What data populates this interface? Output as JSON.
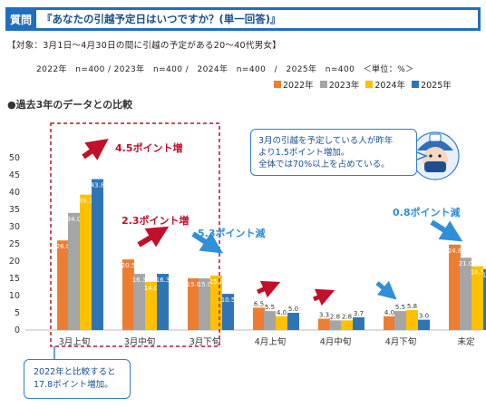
{
  "header": {
    "label": "質問",
    "question": "『あなたの引越予定日はいつですか？(単一回答)』"
  },
  "target": "【対象：3月1日～4月30日の間に引越の予定がある20～40代男女】",
  "sample": "2022年　n=400 / 2023年　n=400 /　2024年　n=400　/　2025年　n=400　＜単位：%＞",
  "subtitle": "●過去3年のデータとの比較",
  "note": {
    "line1": "3月の引越を予定している人が昨年",
    "line2": "より1.5ポイント増加。",
    "line3": "全体では70%以上を占めている。"
  },
  "bottom_note": {
    "line1": "2022年と比較すると",
    "line2": "17.8ポイント増加。"
  },
  "annotations": {
    "a1": "4.5ポイント増",
    "a2": "2.3ポイント増",
    "a3": "5.3ポイント減",
    "a4": "0.8ポイント減"
  },
  "colors": {
    "2022": "#ed7d31",
    "2023": "#a5a5a5",
    "2024": "#ffc000",
    "2025": "#2e75b6",
    "header": "#1f6fc0",
    "up_arrow": "#c0102a",
    "down_arrow": "#2f8fd8",
    "highlight_box": "#b0182e"
  },
  "icons": {
    "mascot": "mascot-face-icon"
  },
  "chart_data": {
    "type": "bar",
    "categories": [
      "3月上旬",
      "3月中旬",
      "3月下旬",
      "4月上旬",
      "4月中旬",
      "4月下旬",
      "未定"
    ],
    "series": [
      {
        "name": "2022年",
        "values": [
          26.0,
          20.5,
          15.0,
          6.5,
          3.3,
          4.0,
          24.8
        ]
      },
      {
        "name": "2023年",
        "values": [
          34.0,
          16.3,
          15.0,
          5.5,
          2.8,
          5.5,
          21.0
        ]
      },
      {
        "name": "2024年",
        "values": [
          39.3,
          14.0,
          15.8,
          4.0,
          2.8,
          5.8,
          18.5
        ]
      },
      {
        "name": "2025年",
        "values": [
          43.8,
          16.3,
          10.5,
          5.0,
          3.7,
          3.0,
          17.7
        ]
      }
    ],
    "y_ticks": [
      0,
      5,
      10,
      15,
      20,
      25,
      30,
      35,
      40,
      45,
      50
    ],
    "ylim": [
      0,
      50
    ],
    "legend_position": "top-right",
    "grid": false
  }
}
